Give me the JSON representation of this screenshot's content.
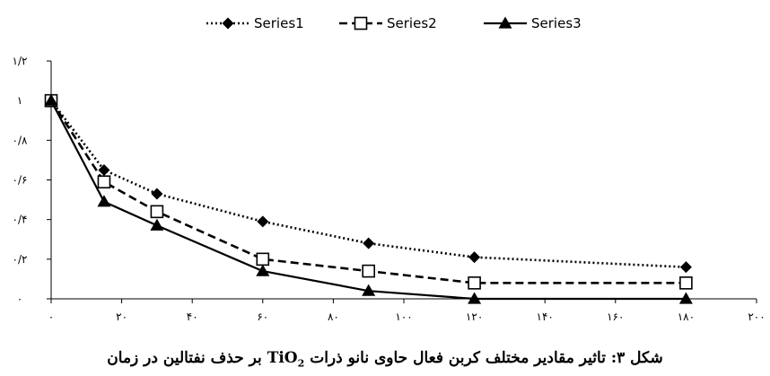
{
  "chart_data": {
    "type": "line",
    "title": "",
    "xlabel": "",
    "ylabel": "",
    "x": [
      0,
      15,
      30,
      60,
      90,
      120,
      180
    ],
    "series": [
      {
        "name": "Series1",
        "values": [
          1.0,
          0.65,
          0.53,
          0.39,
          0.28,
          0.21,
          0.16
        ]
      },
      {
        "name": "Series2",
        "values": [
          1.0,
          0.59,
          0.44,
          0.2,
          0.14,
          0.08,
          0.08
        ]
      },
      {
        "name": "Series3",
        "values": [
          1.0,
          0.49,
          0.37,
          0.14,
          0.04,
          0.0,
          0.0
        ]
      }
    ],
    "xlim": [
      0,
      200
    ],
    "ylim": [
      0,
      1.2
    ],
    "x_ticks": [
      0,
      20,
      40,
      60,
      80,
      100,
      120,
      140,
      160,
      180,
      200
    ],
    "x_tick_labels": [
      "٠",
      "٢٠",
      "۴٠",
      "۶٠",
      "٨٠",
      "١٠٠",
      "١٢٠",
      "١۴٠",
      "١۶٠",
      "١٨٠",
      "٢٠٠"
    ],
    "y_ticks": [
      0,
      0.2,
      0.4,
      0.6,
      0.8,
      1.0,
      1.2
    ],
    "y_tick_labels": [
      "٠",
      "٠/٢",
      "٠/۴",
      "٠/۶",
      "٠/٨",
      "١",
      "١/٢"
    ],
    "grid": false,
    "legend_position": "top-center",
    "series_styles": [
      {
        "line": "dotted",
        "marker": "diamond",
        "color": "#000000"
      },
      {
        "line": "dashed",
        "marker": "square-open",
        "color": "#000000"
      },
      {
        "line": "solid",
        "marker": "triangle",
        "color": "#000000"
      }
    ]
  },
  "caption": {
    "before": "شکل ۳: تاثیر مقادیر مختلف کربن فعال حاوی نانو ذرات ",
    "formula": "TiO",
    "formula_sub": "2",
    "after": " بر حذف نفتالین در زمان"
  }
}
